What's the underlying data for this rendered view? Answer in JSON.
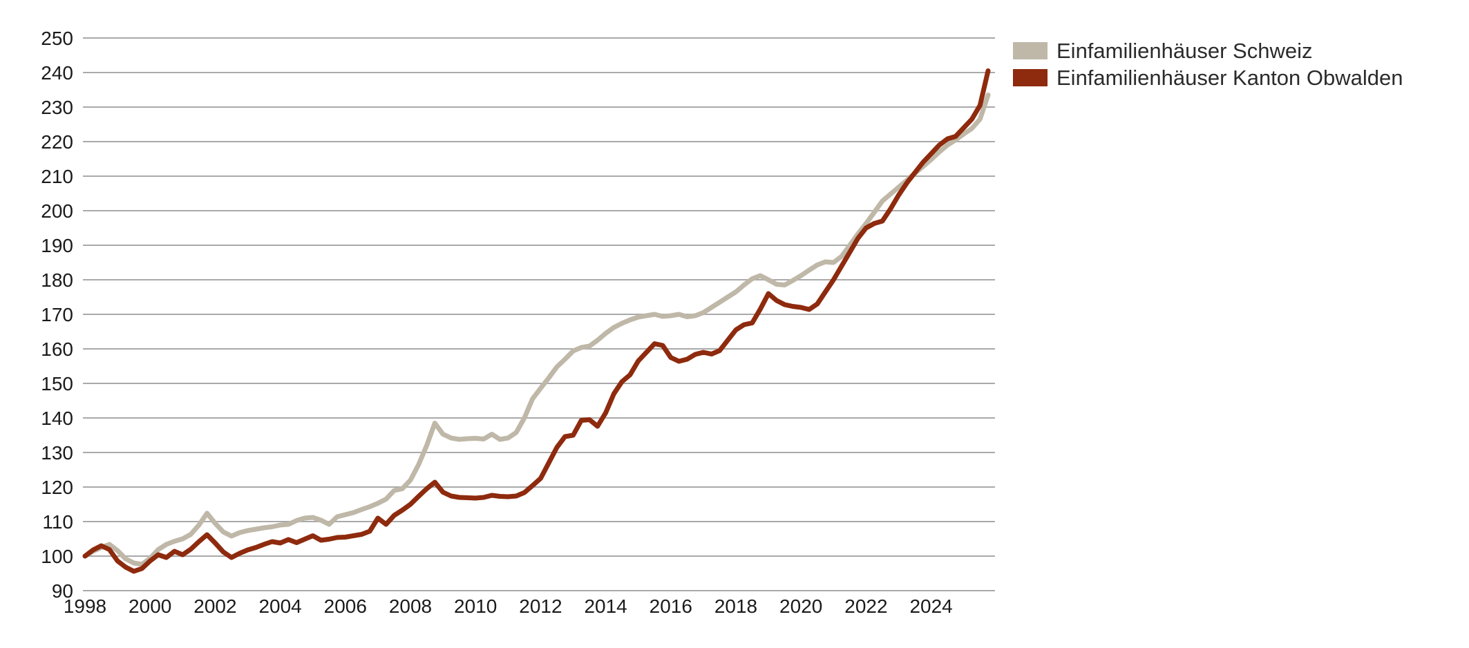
{
  "chart_data": {
    "type": "line",
    "title": "",
    "xlabel": "",
    "ylabel": "",
    "x_start_year": 1998,
    "points_per_year": 4,
    "x_tick_years": [
      1998,
      2000,
      2002,
      2004,
      2006,
      2008,
      2010,
      2012,
      2014,
      2016,
      2018,
      2020,
      2022,
      2024
    ],
    "y_ticks": [
      90,
      100,
      110,
      120,
      130,
      140,
      150,
      160,
      170,
      180,
      190,
      200,
      210,
      220,
      230,
      240,
      250
    ],
    "ylim": [
      90,
      250
    ],
    "grid": true,
    "legend_position": "top-right",
    "grid_color": "#a9a9a9",
    "tick_label_color": "#1a1a1a",
    "series": [
      {
        "name": "Einfamilienhäuser Schweiz",
        "color": "#bfb8a8",
        "values": [
          100.0,
          101.4,
          102.5,
          103.4,
          101.6,
          99.2,
          98.0,
          97.6,
          99.4,
          101.9,
          103.4,
          104.3,
          105.0,
          106.3,
          109.0,
          112.4,
          109.5,
          107.0,
          105.8,
          106.8,
          107.4,
          107.8,
          108.2,
          108.5,
          109.0,
          109.2,
          110.3,
          111.0,
          111.2,
          110.4,
          109.2,
          111.4,
          112.0,
          112.6,
          113.5,
          114.3,
          115.3,
          116.5,
          119.0,
          119.5,
          122.0,
          126.5,
          132.0,
          138.5,
          135.3,
          134.2,
          133.8,
          134.0,
          134.1,
          133.9,
          135.3,
          133.8,
          134.2,
          135.8,
          140.0,
          145.5,
          148.6,
          151.6,
          154.8,
          157.0,
          159.4,
          160.4,
          160.8,
          162.5,
          164.5,
          166.2,
          167.4,
          168.4,
          169.2,
          169.6,
          170.0,
          169.4,
          169.6,
          170.0,
          169.3,
          169.6,
          170.5,
          172.0,
          173.5,
          175.0,
          176.5,
          178.5,
          180.3,
          181.2,
          180.0,
          178.7,
          178.5,
          179.8,
          181.2,
          182.8,
          184.3,
          185.2,
          185.0,
          186.8,
          190.0,
          193.3,
          196.3,
          199.5,
          202.8,
          204.8,
          206.8,
          208.8,
          210.8,
          212.8,
          214.8,
          217.0,
          219.0,
          220.5,
          222.2,
          223.8,
          226.5,
          233.5
        ]
      },
      {
        "name": "Einfamilienhäuser Kanton Obwalden",
        "color": "#8e2a0d",
        "values": [
          100.0,
          101.8,
          103.0,
          101.9,
          98.6,
          96.8,
          95.6,
          96.4,
          98.6,
          100.4,
          99.6,
          101.4,
          100.4,
          102.0,
          104.2,
          106.2,
          103.8,
          101.2,
          99.6,
          100.8,
          101.8,
          102.5,
          103.4,
          104.2,
          103.8,
          104.8,
          103.9,
          104.9,
          105.9,
          104.6,
          104.9,
          105.4,
          105.5,
          105.9,
          106.3,
          107.2,
          111.0,
          109.2,
          111.8,
          113.3,
          115.0,
          117.3,
          119.5,
          121.4,
          118.5,
          117.4,
          117.0,
          116.9,
          116.8,
          117.0,
          117.6,
          117.3,
          117.2,
          117.4,
          118.4,
          120.4,
          122.5,
          127.0,
          131.5,
          134.6,
          135.0,
          139.3,
          139.5,
          137.6,
          141.5,
          147.0,
          150.5,
          152.5,
          156.5,
          159.0,
          161.5,
          161.0,
          157.5,
          156.4,
          157.0,
          158.4,
          159.0,
          158.5,
          159.5,
          162.5,
          165.5,
          167.0,
          167.5,
          171.5,
          176.0,
          174.0,
          172.8,
          172.3,
          172.0,
          171.4,
          173.0,
          176.5,
          180.0,
          184.0,
          188.0,
          192.0,
          195.0,
          196.3,
          197.0,
          200.5,
          204.5,
          208.0,
          211.0,
          214.0,
          216.5,
          219.0,
          220.8,
          221.5,
          224.0,
          226.5,
          230.5,
          240.5
        ]
      }
    ]
  }
}
